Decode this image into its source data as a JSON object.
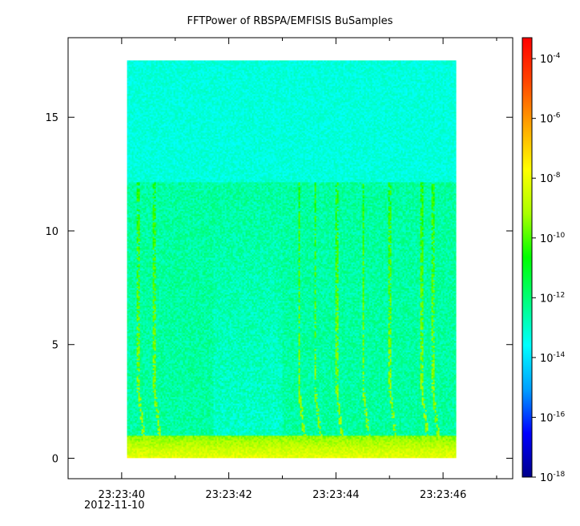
{
  "chart_data": {
    "type": "heatmap",
    "title": "FFTPower of RBSPA/EMFISIS  BuSamples",
    "xlabel": "",
    "ylabel": "",
    "x_ticks": [
      "23:23:40",
      "23:23:42",
      "23:23:44",
      "23:23:46"
    ],
    "x_tick_values": [
      40,
      42,
      44,
      46
    ],
    "x_minor_ticks": [
      41,
      43,
      45,
      47
    ],
    "x_date_label": "2012-11-10",
    "xlim": [
      39,
      47.3
    ],
    "data_x_range": [
      40.1,
      46.25
    ],
    "y_ticks": [
      "0",
      "5",
      "10",
      "15"
    ],
    "y_tick_values": [
      0,
      5,
      10,
      15
    ],
    "ylim": [
      -0.9,
      18.5
    ],
    "data_y_range": [
      0,
      17.5
    ],
    "colorbar": {
      "scale": "log",
      "range_exponents": [
        -18,
        -3.3
      ],
      "tick_exponents": [
        -18,
        -16,
        -14,
        -12,
        -10,
        -8,
        -6,
        -4
      ],
      "tick_base": "10",
      "colors": [
        "#00008b",
        "#0000ff",
        "#00a0ff",
        "#00ffff",
        "#00ff7f",
        "#00ff00",
        "#aaff00",
        "#ffff00",
        "#ffa500",
        "#ff4500",
        "#ff0000"
      ]
    },
    "background_level_exponent": -12.5,
    "low_band_level_exponent": -9.5,
    "upper_region_level_exponent": -13.2,
    "upper_region_start_y": 12.2,
    "whistler_bursts_x": [
      40.3,
      40.6,
      43.3,
      43.6,
      44.0,
      44.5,
      45.0,
      45.6,
      45.8
    ]
  }
}
